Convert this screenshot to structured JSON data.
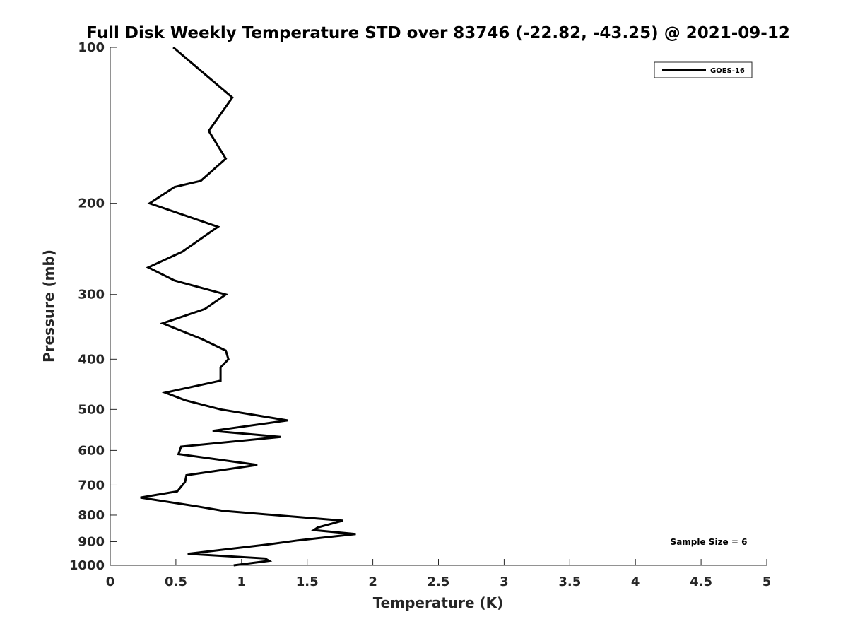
{
  "chart_data": {
    "type": "line",
    "title": "Full Disk Weekly Temperature STD over 83746 (-22.82, -43.25) @ 2021-09-12",
    "xlabel": "Temperature (K)",
    "ylabel": "Pressure (mb)",
    "xlim": [
      0,
      5
    ],
    "ylim": [
      100,
      1000
    ],
    "y_scale": "log",
    "y_reversed": true,
    "grid": false,
    "legend_position": "top-right",
    "x_ticks": [
      "0",
      "0.5",
      "1",
      "1.5",
      "2",
      "2.5",
      "3",
      "3.5",
      "4",
      "4.5",
      "5"
    ],
    "y_ticks": [
      "100",
      "200",
      "300",
      "400",
      "500",
      "600",
      "700",
      "800",
      "900",
      "1000"
    ],
    "series": [
      {
        "name": "GOES-16",
        "color": "#000000",
        "points": [
          [
            0.48,
            100
          ],
          [
            0.93,
            125
          ],
          [
            0.75,
            145
          ],
          [
            0.88,
            164
          ],
          [
            0.69,
            181
          ],
          [
            0.49,
            186
          ],
          [
            0.3,
            200
          ],
          [
            0.82,
            222
          ],
          [
            0.55,
            248
          ],
          [
            0.29,
            266
          ],
          [
            0.49,
            282
          ],
          [
            0.88,
            300
          ],
          [
            0.72,
            320
          ],
          [
            0.4,
            341
          ],
          [
            0.7,
            366
          ],
          [
            0.88,
            385
          ],
          [
            0.9,
            400
          ],
          [
            0.84,
            415
          ],
          [
            0.84,
            440
          ],
          [
            0.42,
            464
          ],
          [
            0.57,
            480
          ],
          [
            0.84,
            500
          ],
          [
            1.35,
            525
          ],
          [
            0.78,
            550
          ],
          [
            1.3,
            565
          ],
          [
            0.54,
            590
          ],
          [
            0.52,
            610
          ],
          [
            1.12,
            640
          ],
          [
            0.58,
            670
          ],
          [
            0.57,
            690
          ],
          [
            0.51,
            720
          ],
          [
            0.23,
            740
          ],
          [
            0.67,
            770
          ],
          [
            0.86,
            785
          ],
          [
            1.77,
            820
          ],
          [
            1.58,
            845
          ],
          [
            1.55,
            855
          ],
          [
            1.87,
            870
          ],
          [
            1.43,
            895
          ],
          [
            1.22,
            910
          ],
          [
            0.59,
            950
          ],
          [
            1.18,
            970
          ],
          [
            1.21,
            980
          ],
          [
            0.94,
            1000
          ]
        ]
      }
    ],
    "annotation": "Sample Size = 6"
  }
}
